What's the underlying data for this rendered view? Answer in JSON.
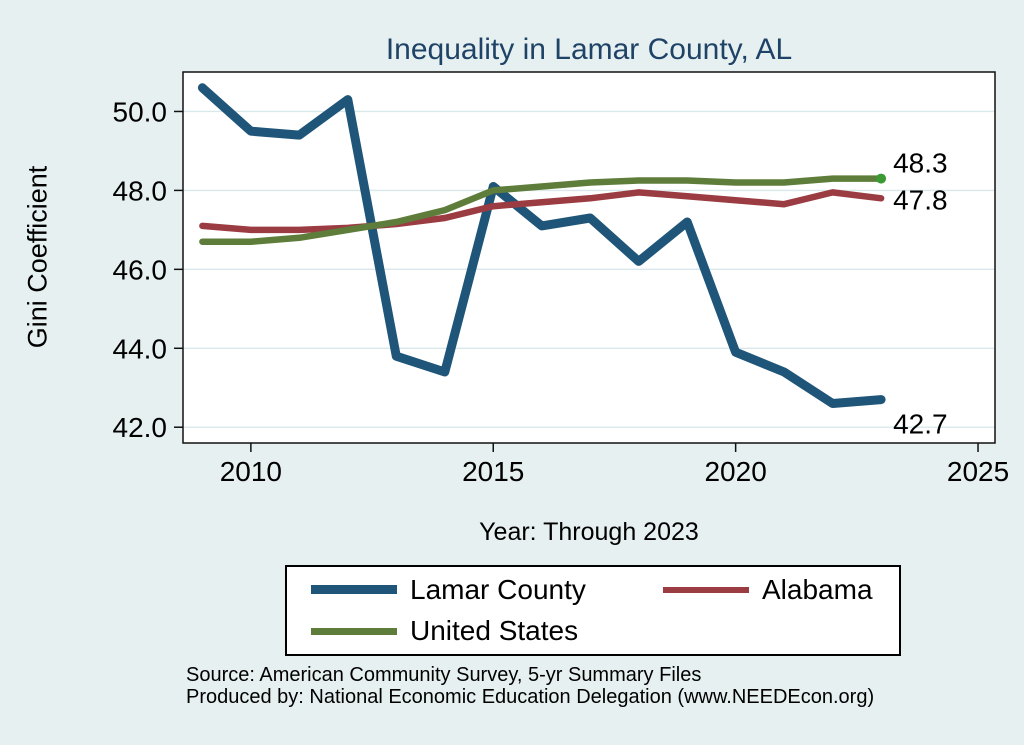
{
  "title": "Inequality in Lamar County, AL",
  "chart_data": {
    "type": "line",
    "title": "Inequality in Lamar County, AL",
    "xlabel": "Year: Through 2023",
    "ylabel": "Gini Coefficient",
    "x": [
      2009,
      2010,
      2011,
      2012,
      2013,
      2014,
      2015,
      2016,
      2017,
      2018,
      2019,
      2020,
      2021,
      2022,
      2023
    ],
    "series": [
      {
        "name": "Lamar County",
        "color": "#1F5578",
        "line_width": 9,
        "values": [
          50.6,
          49.5,
          49.4,
          50.3,
          43.8,
          43.4,
          48.1,
          47.1,
          47.3,
          46.2,
          47.2,
          43.9,
          43.4,
          42.6,
          42.7
        ],
        "end_label": "42.7"
      },
      {
        "name": "Alabama",
        "color": "#9B3C42",
        "line_width": 6.5,
        "values": [
          47.1,
          47.0,
          47.0,
          47.05,
          47.15,
          47.3,
          47.6,
          47.7,
          47.8,
          47.95,
          47.85,
          47.75,
          47.65,
          47.95,
          47.8
        ],
        "end_label": "47.8"
      },
      {
        "name": "United States",
        "color": "#5E7D3B",
        "line_width": 6.5,
        "values": [
          46.7,
          46.7,
          46.8,
          47.0,
          47.2,
          47.5,
          48.0,
          48.1,
          48.2,
          48.25,
          48.25,
          48.2,
          48.2,
          48.3,
          48.3
        ],
        "end_label": "48.3",
        "end_marker": true,
        "end_marker_color": "#3B9A32"
      }
    ],
    "x_ticks": [
      "2010",
      "2015",
      "2020",
      "2025"
    ],
    "x_tick_values": [
      2010,
      2015,
      2020,
      2025
    ],
    "y_ticks": [
      "50.0",
      "48.0",
      "46.0",
      "44.0",
      "42.0"
    ],
    "y_tick_values": [
      50,
      48,
      46,
      44,
      42
    ],
    "xlim": [
      2008.6,
      2025.35
    ],
    "ylim": [
      41.6,
      51.0
    ],
    "grid": "horizontal",
    "legend_position": "bottom"
  },
  "colors": {
    "background": "#E7F0F1",
    "plot_background": "#FFFFFF",
    "gridline": "#D8E8EB",
    "axis": "#111111",
    "title": "#1F4366",
    "end_label_text": "#000000"
  },
  "footer": {
    "source": "Source: American Community Survey, 5-yr Summary Files",
    "produced_by": "Produced by: National Economic Education Delegation (www.NEEDEcon.org)"
  }
}
